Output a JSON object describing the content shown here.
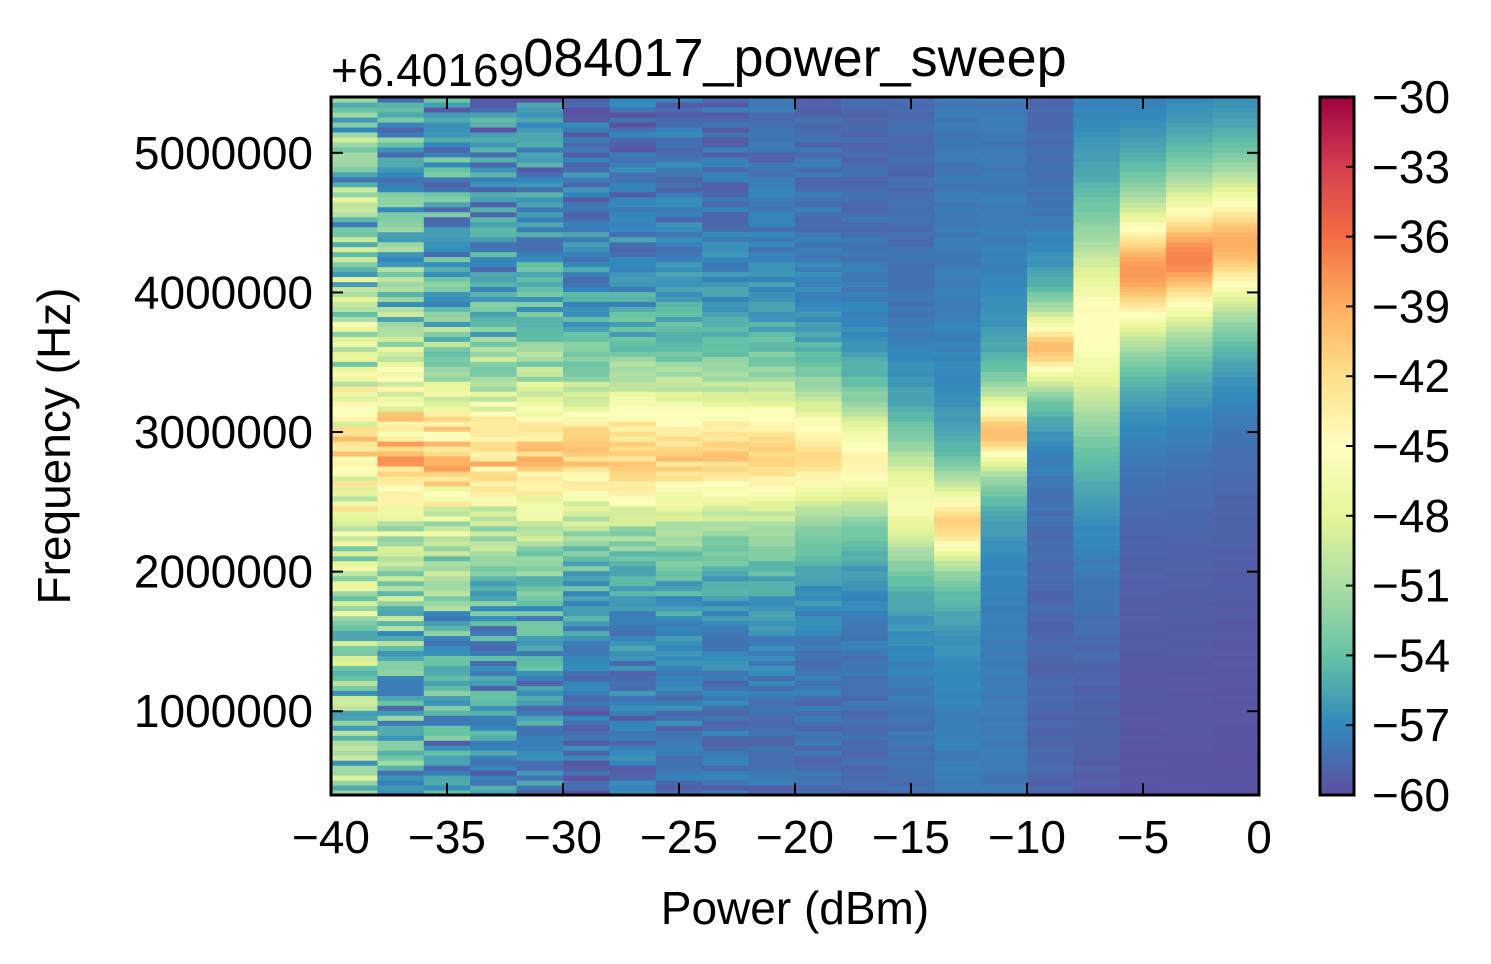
{
  "chart_data": {
    "type": "heatmap",
    "title": "084017_power_sweep",
    "xlabel": "Power (dBm)",
    "ylabel": "Frequency (Hz)",
    "y_offset_label": "+6.40169",
    "xlim": [
      -40,
      0
    ],
    "ylim": [
      400000,
      5400000
    ],
    "x_ticks": [
      -40,
      -35,
      -30,
      -25,
      -20,
      -15,
      -10,
      -5,
      0
    ],
    "x_tick_labels": [
      "−40",
      "−35",
      "−30",
      "−25",
      "−20",
      "−15",
      "−10",
      "−5",
      "0"
    ],
    "y_ticks": [
      1000000,
      2000000,
      3000000,
      4000000,
      5000000
    ],
    "y_tick_labels": [
      "1000000",
      "2000000",
      "3000000",
      "4000000",
      "5000000"
    ],
    "colorbar": {
      "colormap": "Spectral_r",
      "vmin": -60,
      "vmax": -30,
      "ticks": [
        -60,
        -57,
        -54,
        -51,
        -48,
        -45,
        -42,
        -39,
        -36,
        -33,
        -30
      ],
      "tick_labels": [
        "−60",
        "−57",
        "−54",
        "−51",
        "−48",
        "−45",
        "−42",
        "−39",
        "−36",
        "−33",
        "−30"
      ]
    },
    "power_columns_dBm": [
      -40,
      -38,
      -36,
      -34,
      -32,
      -30,
      -28,
      -26,
      -24,
      -22,
      -20,
      -18,
      -16,
      -14,
      -12,
      -10,
      -8,
      -6,
      -4,
      -2
    ],
    "resonance_center_Hz": [
      2850000,
      2850000,
      2850000,
      2850000,
      2850000,
      2850000,
      2850000,
      2850000,
      2850000,
      2850000,
      2850000,
      2800000,
      2500000,
      2350000,
      3000000,
      3600000,
      3750000,
      4150000,
      4250000,
      4350000
    ],
    "peak_level_dB": [
      -43,
      -41,
      -41,
      -41,
      -41,
      -41,
      -41,
      -41,
      -41,
      -41,
      -42,
      -44,
      -46,
      -41,
      -40,
      -40,
      -45,
      -38,
      -37,
      -39
    ],
    "linewidth_Hz": [
      1200000,
      1100000,
      1050000,
      1000000,
      1000000,
      1000000,
      1000000,
      1000000,
      950000,
      950000,
      850000,
      800000,
      900000,
      550000,
      500000,
      500000,
      1500000,
      900000,
      900000,
      900000
    ],
    "background_dB": [
      -54,
      -56,
      -57,
      -58,
      -58,
      -59,
      -59,
      -59,
      -59,
      -59,
      -59,
      -59,
      -59,
      -58,
      -58,
      -59,
      -60,
      -60,
      -60,
      -60
    ],
    "noise_amplitude_dB": [
      5,
      4,
      3.5,
      3,
      2.5,
      2,
      1.8,
      1.5,
      1.2,
      1,
      0.8,
      0.5,
      0.4,
      0.3,
      0.3,
      0.3,
      0.2,
      0.1,
      0.1,
      0.1
    ]
  }
}
